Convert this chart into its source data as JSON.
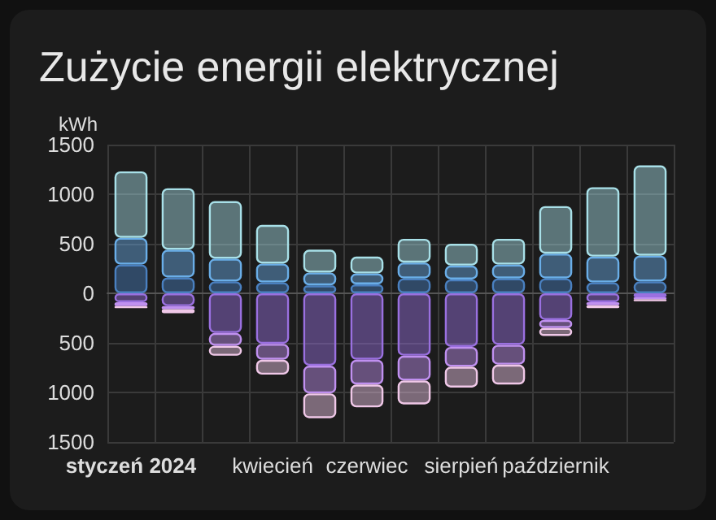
{
  "chart_data": {
    "type": "bar",
    "title": "Zużycie energii elektrycznej",
    "ylabel": "kWh",
    "stacked": true,
    "categories": [
      "styczeń 2024",
      null,
      null,
      "kwiecień",
      null,
      "czerwiec",
      null,
      "sierpień",
      null,
      "październik",
      null,
      null
    ],
    "series": [
      {
        "color": "#4a80c0",
        "values": [
          290,
          160,
          120,
          110,
          80,
          90,
          150,
          140,
          150,
          150,
          110,
          120
        ]
      },
      {
        "color": "#6aaee8",
        "values": [
          270,
          280,
          230,
          190,
          130,
          110,
          160,
          140,
          140,
          250,
          260,
          260
        ]
      },
      {
        "color": "#a8e0e8",
        "values": [
          670,
          620,
          580,
          390,
          230,
          170,
          240,
          220,
          260,
          480,
          700,
          910
        ]
      },
      {
        "color": "#9a70e0",
        "values": [
          -90,
          -130,
          -400,
          -510,
          -730,
          -670,
          -630,
          -540,
          -520,
          -270,
          -90,
          -40
        ]
      },
      {
        "color": "#c090f0",
        "values": [
          -40,
          -30,
          -130,
          -160,
          -280,
          -250,
          -250,
          -200,
          -200,
          -80,
          -30,
          -20
        ]
      },
      {
        "color": "#f0c8e8",
        "values": [
          -20,
          -40,
          -100,
          -150,
          -250,
          -230,
          -240,
          -210,
          -200,
          -80,
          -30,
          -20
        ]
      }
    ],
    "ylim": [
      -1500,
      1500
    ],
    "yticks": [
      {
        "value": -1500,
        "label": "1500"
      },
      {
        "value": -1000,
        "label": "1000"
      },
      {
        "value": -500,
        "label": "500"
      },
      0,
      500,
      1000,
      1500
    ],
    "grid": true
  }
}
